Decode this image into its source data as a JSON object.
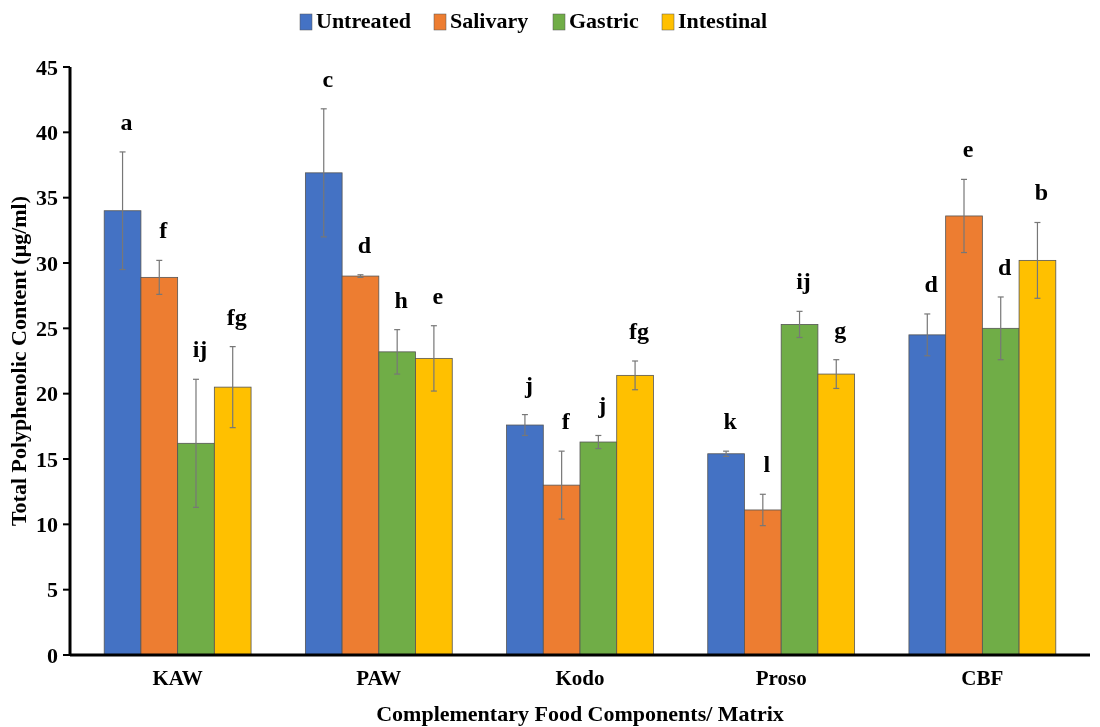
{
  "chart_data": {
    "type": "bar",
    "xlabel": "Complementary Food Components/ Matrix",
    "ylabel": "Total Polyphenolic Content (μg/ml)",
    "categories": [
      "KAW",
      "PAW",
      "Kodo",
      "Proso",
      "CBF"
    ],
    "series": [
      {
        "name": "Untreated",
        "color": "#4472c4",
        "values": [
          34.0,
          36.9,
          17.6,
          15.4,
          24.5
        ],
        "errors": [
          4.5,
          4.9,
          0.8,
          0.2,
          1.6
        ]
      },
      {
        "name": "Salivary",
        "color": "#ed7d31",
        "values": [
          28.9,
          29.0,
          13.0,
          11.1,
          33.6
        ],
        "errors": [
          1.3,
          0.1,
          2.6,
          1.2,
          2.8
        ]
      },
      {
        "name": "Gastric",
        "color": "#70ad47",
        "values": [
          16.2,
          23.2,
          16.3,
          25.3,
          25.0
        ],
        "errors": [
          4.9,
          1.7,
          0.5,
          1.0,
          2.4
        ]
      },
      {
        "name": "Intestinal",
        "color": "#ffc000",
        "values": [
          20.5,
          22.7,
          21.4,
          21.5,
          30.2
        ],
        "errors": [
          3.1,
          2.5,
          1.1,
          1.1,
          2.9
        ]
      }
    ],
    "ylim": [
      0,
      45
    ],
    "yticks": [
      0,
      5,
      10,
      15,
      20,
      25,
      30,
      35,
      40,
      45
    ],
    "grid": false,
    "legend": "top",
    "annotations": [
      "a",
      "f",
      "ij",
      "fg",
      "c",
      "d",
      "h",
      "e",
      "j",
      "f",
      "j",
      "fg",
      "k",
      "l",
      "ij",
      "g",
      "d",
      "e",
      "d",
      "b"
    ]
  }
}
